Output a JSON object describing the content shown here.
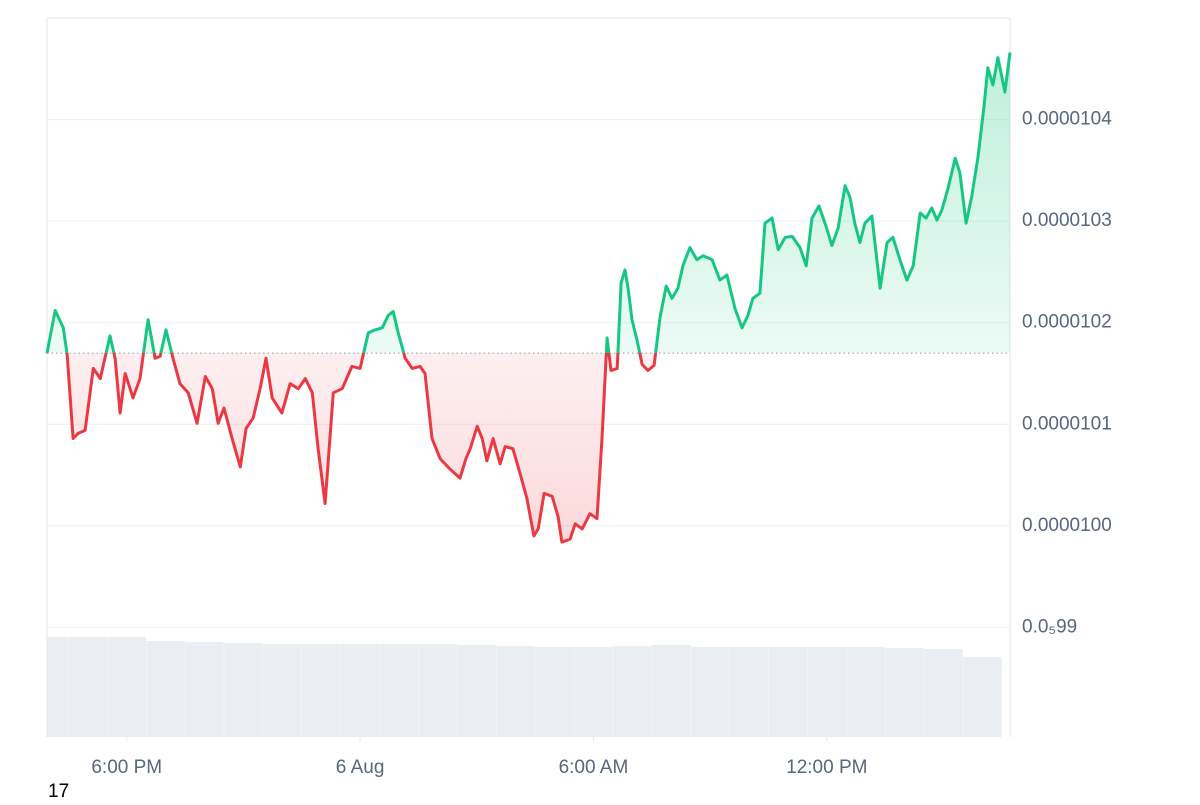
{
  "chart_data": {
    "type": "line",
    "up_color": "#16c784",
    "down_color": "#ea3943",
    "volume_color": "#eaeef2",
    "baseline": 1.017e-05,
    "corner_label": "17",
    "xlim": [
      -8.05,
      16.71
    ],
    "ylim": [
      9.8e-06,
      1.05e-05
    ],
    "volume_ylim": [
      0,
      100
    ],
    "grid": true,
    "xticks": [
      {
        "value": -6,
        "label": "6:00 PM"
      },
      {
        "value": 0,
        "label": "6 Aug"
      },
      {
        "value": 6,
        "label": "6:00 AM"
      },
      {
        "value": 12,
        "label": "12:00 PM"
      }
    ],
    "yticks": [
      {
        "value": 9.9e-06,
        "label": "0.0₅99"
      },
      {
        "value": 1e-05,
        "label": "0.0000100"
      },
      {
        "value": 1.01e-05,
        "label": "0.0000101"
      },
      {
        "value": 1.02e-05,
        "label": "0.0000102"
      },
      {
        "value": 1.03e-05,
        "label": "0.0000103"
      },
      {
        "value": 1.04e-05,
        "label": "0.0000104"
      }
    ],
    "x": [
      -8.05,
      -7.84,
      -7.63,
      -7.53,
      -7.38,
      -7.25,
      -7.07,
      -6.86,
      -6.68,
      -6.43,
      -6.3,
      -6.17,
      -6.04,
      -5.84,
      -5.66,
      -5.45,
      -5.27,
      -5.14,
      -4.99,
      -4.81,
      -4.63,
      -4.42,
      -4.19,
      -3.98,
      -3.8,
      -3.65,
      -3.5,
      -3.29,
      -3.08,
      -2.93,
      -2.75,
      -2.57,
      -2.42,
      -2.26,
      -2.01,
      -1.8,
      -1.59,
      -1.41,
      -1.23,
      -1.08,
      -0.9,
      -0.69,
      -0.46,
      -0.21,
      0,
      0.21,
      0.39,
      0.57,
      0.72,
      0.85,
      0.98,
      1.16,
      1.34,
      1.54,
      1.67,
      1.85,
      2.06,
      2.31,
      2.57,
      2.72,
      2.83,
      3.01,
      3.14,
      3.26,
      3.42,
      3.6,
      3.73,
      3.93,
      4.11,
      4.29,
      4.47,
      4.58,
      4.73,
      4.94,
      5.09,
      5.19,
      5.4,
      5.53,
      5.71,
      5.91,
      6.09,
      6.22,
      6.35,
      6.45,
      6.61,
      6.71,
      6.81,
      6.89,
      6.99,
      7.12,
      7.25,
      7.4,
      7.56,
      7.71,
      7.87,
      8.02,
      8.17,
      8.3,
      8.48,
      8.66,
      8.82,
      9.05,
      9.25,
      9.43,
      9.64,
      9.82,
      9.97,
      10.1,
      10.28,
      10.41,
      10.59,
      10.75,
      10.93,
      11.11,
      11.31,
      11.47,
      11.62,
      11.8,
      11.98,
      12.13,
      12.29,
      12.47,
      12.6,
      12.72,
      12.85,
      12.98,
      13.16,
      13.37,
      13.55,
      13.7,
      13.88,
      14.06,
      14.22,
      14.4,
      14.55,
      14.7,
      14.83,
      14.96,
      15.12,
      15.3,
      15.42,
      15.58,
      15.73,
      15.89,
      16.04,
      16.14,
      16.27,
      16.4,
      16.58,
      16.71
    ],
    "values": [
      1.017e-05,
      1.0212e-05,
      1.0195e-05,
      1.0168e-05,
      1.0086e-05,
      1.0091e-05,
      1.0094e-05,
      1.0155e-05,
      1.0145e-05,
      1.0187e-05,
      1.0165e-05,
      1.0111e-05,
      1.015e-05,
      1.0126e-05,
      1.0145e-05,
      1.0203e-05,
      1.0165e-05,
      1.0167e-05,
      1.0193e-05,
      1.0165e-05,
      1.014e-05,
      1.0131e-05,
      1.0101e-05,
      1.0147e-05,
      1.0135e-05,
      1.0101e-05,
      1.0116e-05,
      1.0086e-05,
      1.0058e-05,
      1.0096e-05,
      1.0106e-05,
      1.0135e-05,
      1.0165e-05,
      1.0126e-05,
      1.0111e-05,
      1.014e-05,
      1.0135e-05,
      1.0145e-05,
      1.0131e-05,
      1.0076e-05,
      1.0022e-05,
      1.0131e-05,
      1.0135e-05,
      1.0157e-05,
      1.0155e-05,
      1.019e-05,
      1.0193e-05,
      1.0195e-05,
      1.0207e-05,
      1.0211e-05,
      1.019e-05,
      1.0165e-05,
      1.0155e-05,
      1.0157e-05,
      1.015e-05,
      1.0086e-05,
      1.0066e-05,
      1.0056e-05,
      1.0047e-05,
      1.0066e-05,
      1.0076e-05,
      1.0098e-05,
      1.0086e-05,
      1.0064e-05,
      1.0086e-05,
      1.0061e-05,
      1.0078e-05,
      1.0076e-05,
      1.0052e-05,
      1.0027e-05,
      9.99e-06,
      9.997e-06,
      1.0032e-05,
      1.0029e-05,
      1.0009e-05,
      9.984e-06,
      9.987e-06,
      1.0002e-05,
      9.997e-06,
      1.0012e-05,
      1.0007e-05,
      1.0086e-05,
      1.0185e-05,
      1.0153e-05,
      1.0155e-05,
      1.0239e-05,
      1.0252e-05,
      1.0234e-05,
      1.0203e-05,
      1.0183e-05,
      1.0159e-05,
      1.0153e-05,
      1.0158e-05,
      1.0205e-05,
      1.0236e-05,
      1.0224e-05,
      1.0234e-05,
      1.0256e-05,
      1.0274e-05,
      1.0262e-05,
      1.0266e-05,
      1.0262e-05,
      1.0242e-05,
      1.0247e-05,
      1.0214e-05,
      1.0195e-05,
      1.0207e-05,
      1.0224e-05,
      1.0229e-05,
      1.0298e-05,
      1.0303e-05,
      1.0272e-05,
      1.0284e-05,
      1.0285e-05,
      1.0274e-05,
      1.0256e-05,
      1.0303e-05,
      1.0315e-05,
      1.0295e-05,
      1.0276e-05,
      1.0293e-05,
      1.0335e-05,
      1.0323e-05,
      1.0298e-05,
      1.0279e-05,
      1.0298e-05,
      1.0305e-05,
      1.0234e-05,
      1.0279e-05,
      1.0284e-05,
      1.0262e-05,
      1.0242e-05,
      1.0256e-05,
      1.0308e-05,
      1.0303e-05,
      1.0313e-05,
      1.0301e-05,
      1.0311e-05,
      1.0333e-05,
      1.0362e-05,
      1.0348e-05,
      1.0298e-05,
      1.0325e-05,
      1.0364e-05,
      1.0412e-05,
      1.0451e-05,
      1.0434e-05,
      1.0461e-05,
      1.0427e-05,
      1.0466e-05
    ],
    "volume": {
      "x": [
        -8,
        -7,
        -6,
        -5,
        -4,
        -3,
        -2,
        -1,
        0,
        1,
        2,
        3,
        4,
        5,
        6,
        7,
        8,
        9,
        10,
        11,
        12,
        13,
        14,
        15,
        16
      ],
      "values": [
        100,
        100,
        100,
        96,
        95,
        94,
        93,
        93,
        93,
        93,
        93,
        92,
        91,
        90,
        90,
        91,
        92,
        90,
        90,
        90,
        90,
        90,
        89,
        88,
        80
      ]
    }
  }
}
